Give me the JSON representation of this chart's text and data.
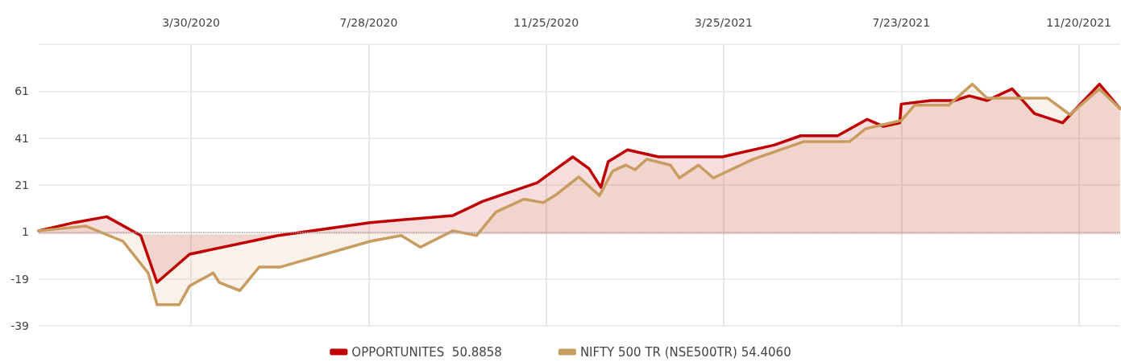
{
  "chart_data": {
    "type": "area",
    "xlim": [
      "2019-12-18",
      "2021-12-18"
    ],
    "xticks": [
      {
        "value": "2020-03-30",
        "label": "3/30/2020"
      },
      {
        "value": "2020-07-28",
        "label": "7/28/2020"
      },
      {
        "value": "2020-11-25",
        "label": "11/25/2020"
      },
      {
        "value": "2021-03-25",
        "label": "3/25/2021"
      },
      {
        "value": "2021-07-23",
        "label": "7/23/2021"
      },
      {
        "value": "2021-11-20",
        "label": "11/20/2021"
      }
    ],
    "ylim": [
      -39,
      81
    ],
    "yticks": [
      -39,
      -19,
      1,
      21,
      41,
      61,
      {
        "value": 81,
        "label": null
      }
    ],
    "grid": true,
    "legend": "bottom",
    "marker": "none",
    "line_style": "solid",
    "ref_lines": [
      {
        "axis": "y",
        "value": 1,
        "color": "#aaaaaa",
        "line_style": "dotted"
      }
    ],
    "series": [
      {
        "name": "OPPORTUNITES  50.8858",
        "color": "#c00000",
        "x": [
          "2019-12-18",
          "2020-01-11",
          "2020-02-02",
          "2020-02-25",
          "2020-03-07",
          "2020-03-29",
          "2020-05-28",
          "2020-07-29",
          "2020-09-23",
          "2020-10-13",
          "2020-11-19",
          "2020-12-02",
          "2020-12-13",
          "2020-12-24",
          "2021-01-01",
          "2021-01-06",
          "2021-01-19",
          "2021-02-09",
          "2021-03-24",
          "2021-04-28",
          "2021-05-16",
          "2021-06-10",
          "2021-06-30",
          "2021-07-11",
          "2021-07-22",
          "2021-07-23",
          "2021-08-12",
          "2021-08-28",
          "2021-09-07",
          "2021-09-19",
          "2021-10-06",
          "2021-10-21",
          "2021-11-09",
          "2021-12-04",
          "2021-12-18"
        ],
        "values": [
          1.5,
          5,
          7.5,
          -0.5,
          -20.5,
          -8.5,
          -0.5,
          5,
          8,
          14,
          22,
          28,
          33,
          28,
          20,
          31,
          36,
          33,
          33,
          38,
          42,
          42,
          49,
          46,
          47.5,
          55.5,
          57,
          57,
          59,
          57,
          62,
          51.5,
          47.5,
          64,
          53.5
        ]
      },
      {
        "name": "NIFTY 500 TR (NSE500TR) 54.4060",
        "color": "#c89b5e",
        "x": [
          "2019-12-18",
          "2020-01-19",
          "2020-02-13",
          "2020-03-01",
          "2020-03-07",
          "2020-03-22",
          "2020-03-29",
          "2020-04-14",
          "2020-04-18",
          "2020-05-02",
          "2020-05-15",
          "2020-05-29",
          "2020-07-29",
          "2020-08-19",
          "2020-09-01",
          "2020-09-23",
          "2020-10-09",
          "2020-10-22",
          "2020-11-10",
          "2020-11-23",
          "2020-12-02",
          "2020-12-17",
          "2020-12-31",
          "2021-01-09",
          "2021-01-18",
          "2021-01-24",
          "2021-02-01",
          "2021-02-17",
          "2021-02-23",
          "2021-03-08",
          "2021-03-18",
          "2021-04-14",
          "2021-05-18",
          "2021-06-18",
          "2021-06-29",
          "2021-07-23",
          "2021-08-01",
          "2021-08-24",
          "2021-09-09",
          "2021-09-19",
          "2021-10-30",
          "2021-11-14",
          "2021-12-04",
          "2021-12-18"
        ],
        "values": [
          1.5,
          3.5,
          -3,
          -16.5,
          -30,
          -30,
          -22,
          -16.5,
          -20.5,
          -24,
          -14,
          -14,
          -3,
          -0.5,
          -5.5,
          1.5,
          -0.5,
          9.5,
          15,
          13.5,
          17,
          24.5,
          16.5,
          27,
          29.5,
          27.5,
          32,
          29.5,
          24,
          29.5,
          24,
          32,
          39.5,
          39.5,
          45,
          48.5,
          55,
          55,
          64,
          58,
          58,
          51,
          62,
          53.5
        ]
      }
    ]
  }
}
